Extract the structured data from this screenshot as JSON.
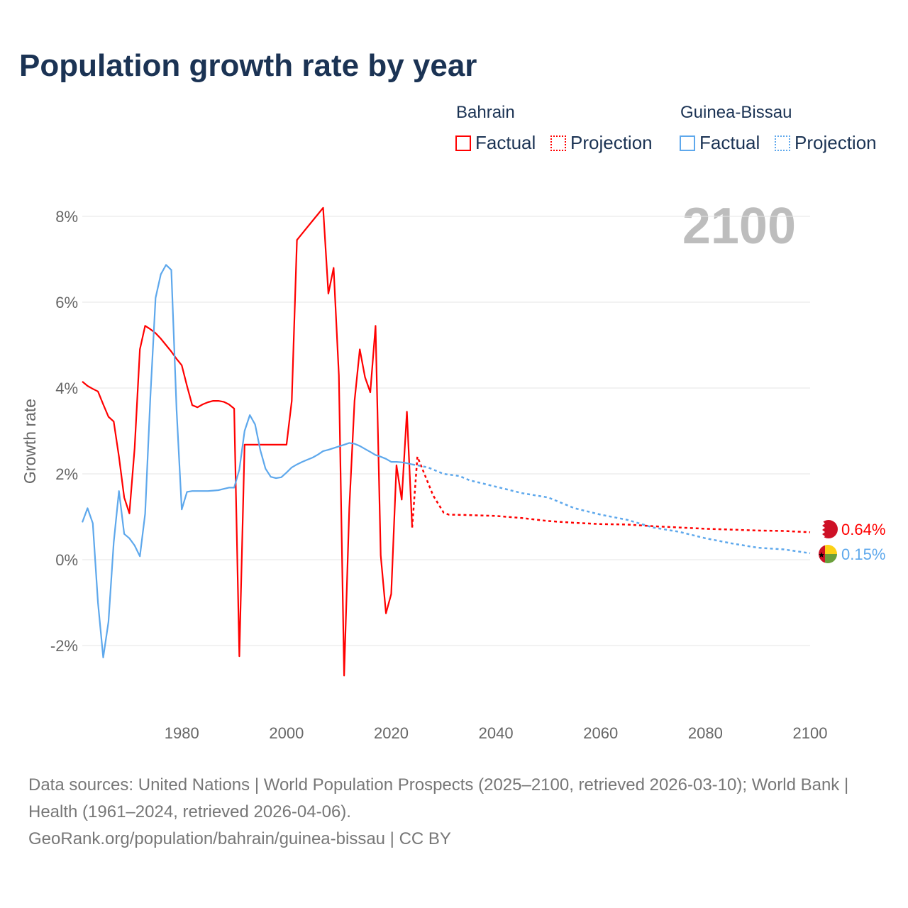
{
  "title": "Population growth rate by year",
  "legend": {
    "groups": [
      {
        "name": "Bahrain",
        "factual": "Factual",
        "projection": "Projection",
        "color": "#ff0000"
      },
      {
        "name": "Guinea-Bissau",
        "factual": "Factual",
        "projection": "Projection",
        "color": "#5ea8ec"
      }
    ]
  },
  "year_display": "2100",
  "footer": {
    "line1": "Data sources: United Nations | World Population Prospects (2025–2100, retrieved 2026-03-10); World Bank | Health (1961–2024, retrieved 2026-04-06).",
    "line2": "GeoRank.org/population/bahrain/guinea-bissau | CC BY"
  },
  "chart_data": {
    "type": "line",
    "title": "Population growth rate by year",
    "xlabel": "",
    "ylabel": "Growth rate",
    "xlim": [
      1961,
      2100
    ],
    "ylim": [
      -3,
      8.5
    ],
    "yticks": [
      {
        "v": -2,
        "label": "-2%"
      },
      {
        "v": 0,
        "label": "0%"
      },
      {
        "v": 2,
        "label": "2%"
      },
      {
        "v": 4,
        "label": "4%"
      },
      {
        "v": 6,
        "label": "6%"
      },
      {
        "v": 8,
        "label": "8%"
      }
    ],
    "xticks": [
      1980,
      2000,
      2020,
      2040,
      2060,
      2080,
      2100
    ],
    "series": [
      {
        "name": "Bahrain",
        "color": "#ff0000",
        "end_label": "0.64%",
        "factual": [
          [
            1961,
            4.15
          ],
          [
            1962,
            4.05
          ],
          [
            1963,
            3.98
          ],
          [
            1964,
            3.92
          ],
          [
            1965,
            3.62
          ],
          [
            1966,
            3.33
          ],
          [
            1967,
            3.22
          ],
          [
            1968,
            2.4
          ],
          [
            1969,
            1.45
          ],
          [
            1970,
            1.08
          ],
          [
            1971,
            2.6
          ],
          [
            1972,
            4.9
          ],
          [
            1973,
            5.45
          ],
          [
            1974,
            5.37
          ],
          [
            1975,
            5.28
          ],
          [
            1976,
            5.15
          ],
          [
            1977,
            5.0
          ],
          [
            1978,
            4.85
          ],
          [
            1979,
            4.68
          ],
          [
            1980,
            4.53
          ],
          [
            1981,
            4.05
          ],
          [
            1982,
            3.6
          ],
          [
            1983,
            3.55
          ],
          [
            1984,
            3.62
          ],
          [
            1985,
            3.67
          ],
          [
            1986,
            3.7
          ],
          [
            1987,
            3.7
          ],
          [
            1988,
            3.68
          ],
          [
            1989,
            3.62
          ],
          [
            1990,
            3.52
          ],
          [
            1991,
            -2.25
          ],
          [
            1992,
            2.68
          ],
          [
            1993,
            2.68
          ],
          [
            1994,
            2.68
          ],
          [
            1995,
            2.68
          ],
          [
            1996,
            2.68
          ],
          [
            1997,
            2.68
          ],
          [
            1998,
            2.68
          ],
          [
            1999,
            2.68
          ],
          [
            2000,
            2.68
          ],
          [
            2001,
            3.7
          ],
          [
            2002,
            7.45
          ],
          [
            2003,
            7.6
          ],
          [
            2004,
            7.75
          ],
          [
            2005,
            7.9
          ],
          [
            2006,
            8.05
          ],
          [
            2007,
            8.2
          ],
          [
            2008,
            6.2
          ],
          [
            2009,
            6.8
          ],
          [
            2010,
            4.3
          ],
          [
            2011,
            -2.7
          ],
          [
            2012,
            1.2
          ],
          [
            2013,
            3.7
          ],
          [
            2014,
            4.9
          ],
          [
            2015,
            4.25
          ],
          [
            2016,
            3.9
          ],
          [
            2017,
            5.45
          ],
          [
            2018,
            0.1
          ],
          [
            2019,
            -1.25
          ],
          [
            2020,
            -0.8
          ],
          [
            2021,
            2.2
          ],
          [
            2022,
            1.4
          ],
          [
            2023,
            3.45
          ],
          [
            2024,
            0.75
          ]
        ],
        "projection": [
          [
            2024,
            0.75
          ],
          [
            2025,
            2.4
          ],
          [
            2026,
            2.1
          ],
          [
            2027,
            1.8
          ],
          [
            2028,
            1.5
          ],
          [
            2029,
            1.3
          ],
          [
            2030,
            1.1
          ],
          [
            2031,
            1.05
          ],
          [
            2035,
            1.04
          ],
          [
            2040,
            1.02
          ],
          [
            2045,
            0.97
          ],
          [
            2050,
            0.9
          ],
          [
            2055,
            0.86
          ],
          [
            2060,
            0.83
          ],
          [
            2065,
            0.82
          ],
          [
            2070,
            0.78
          ],
          [
            2075,
            0.75
          ],
          [
            2080,
            0.72
          ],
          [
            2085,
            0.7
          ],
          [
            2090,
            0.68
          ],
          [
            2095,
            0.67
          ],
          [
            2100,
            0.64
          ]
        ]
      },
      {
        "name": "Guinea-Bissau",
        "color": "#5ea8ec",
        "end_label": "0.15%",
        "factual": [
          [
            1961,
            0.87
          ],
          [
            1962,
            1.2
          ],
          [
            1963,
            0.85
          ],
          [
            1964,
            -1.0
          ],
          [
            1965,
            -2.28
          ],
          [
            1966,
            -1.45
          ],
          [
            1967,
            0.4
          ],
          [
            1968,
            1.6
          ],
          [
            1969,
            0.6
          ],
          [
            1970,
            0.5
          ],
          [
            1971,
            0.33
          ],
          [
            1972,
            0.08
          ],
          [
            1973,
            1.07
          ],
          [
            1974,
            3.8
          ],
          [
            1975,
            6.1
          ],
          [
            1976,
            6.65
          ],
          [
            1977,
            6.87
          ],
          [
            1978,
            6.75
          ],
          [
            1979,
            3.5
          ],
          [
            1980,
            1.17
          ],
          [
            1981,
            1.58
          ],
          [
            1982,
            1.6
          ],
          [
            1983,
            1.6
          ],
          [
            1984,
            1.6
          ],
          [
            1985,
            1.6
          ],
          [
            1986,
            1.61
          ],
          [
            1987,
            1.62
          ],
          [
            1988,
            1.65
          ],
          [
            1989,
            1.68
          ],
          [
            1990,
            1.68
          ],
          [
            1991,
            2.1
          ],
          [
            1992,
            3.0
          ],
          [
            1993,
            3.37
          ],
          [
            1994,
            3.15
          ],
          [
            1995,
            2.55
          ],
          [
            1996,
            2.12
          ],
          [
            1997,
            1.93
          ],
          [
            1998,
            1.9
          ],
          [
            1999,
            1.92
          ],
          [
            2000,
            2.03
          ],
          [
            2001,
            2.15
          ],
          [
            2002,
            2.22
          ],
          [
            2003,
            2.28
          ],
          [
            2004,
            2.33
          ],
          [
            2005,
            2.38
          ],
          [
            2006,
            2.45
          ],
          [
            2007,
            2.53
          ],
          [
            2008,
            2.56
          ],
          [
            2009,
            2.6
          ],
          [
            2010,
            2.64
          ],
          [
            2011,
            2.68
          ],
          [
            2012,
            2.72
          ],
          [
            2013,
            2.7
          ],
          [
            2014,
            2.65
          ],
          [
            2015,
            2.58
          ],
          [
            2016,
            2.51
          ],
          [
            2017,
            2.44
          ],
          [
            2018,
            2.4
          ],
          [
            2019,
            2.35
          ],
          [
            2020,
            2.28
          ],
          [
            2021,
            2.28
          ],
          [
            2022,
            2.27
          ],
          [
            2023,
            2.25
          ],
          [
            2024,
            2.22
          ]
        ],
        "projection": [
          [
            2024,
            2.22
          ],
          [
            2025,
            2.2
          ],
          [
            2027,
            2.15
          ],
          [
            2030,
            2.0
          ],
          [
            2033,
            1.95
          ],
          [
            2035,
            1.85
          ],
          [
            2040,
            1.7
          ],
          [
            2045,
            1.55
          ],
          [
            2050,
            1.45
          ],
          [
            2055,
            1.2
          ],
          [
            2060,
            1.05
          ],
          [
            2065,
            0.93
          ],
          [
            2070,
            0.75
          ],
          [
            2075,
            0.65
          ],
          [
            2080,
            0.5
          ],
          [
            2085,
            0.38
          ],
          [
            2090,
            0.28
          ],
          [
            2095,
            0.24
          ],
          [
            2100,
            0.15
          ]
        ]
      }
    ]
  }
}
